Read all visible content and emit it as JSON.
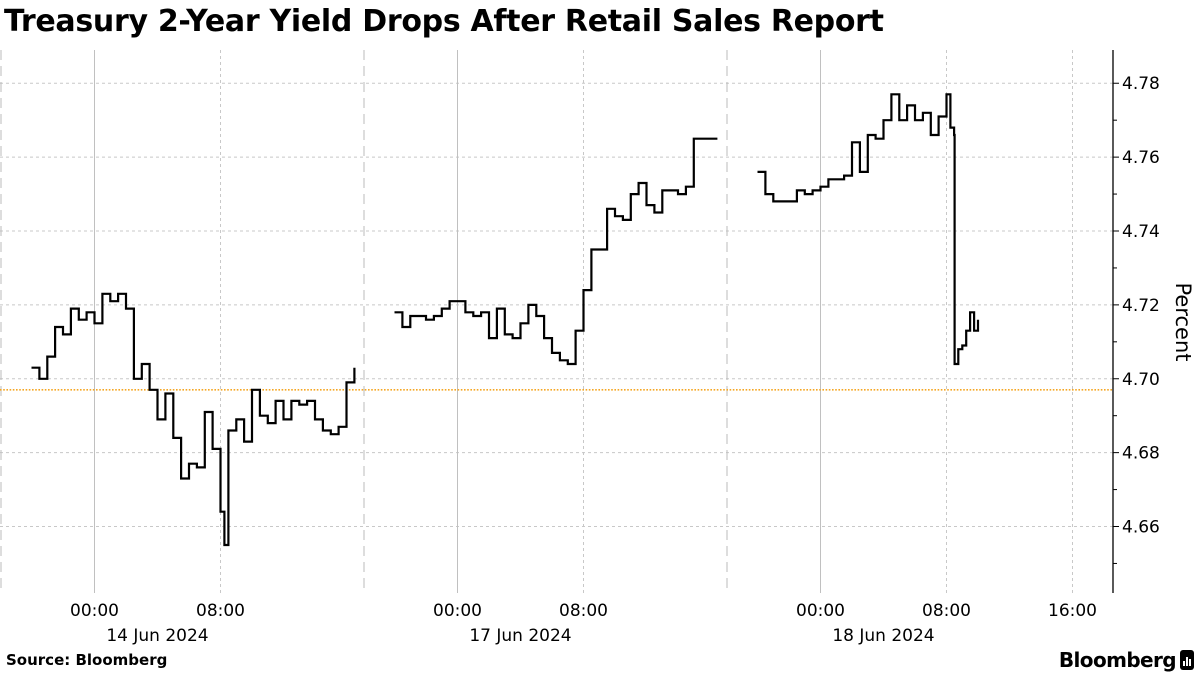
{
  "title": "Treasury 2-Year Yield Drops After Retail Sales Report",
  "source": "Source: Bloomberg",
  "brand": "Bloomberg",
  "chart_data": {
    "type": "line",
    "title": "Treasury 2-Year Yield Drops After Retail Sales Report",
    "ylabel": "Percent",
    "ylim": [
      4.642,
      4.789
    ],
    "yticks": [
      "4.66",
      "4.68",
      "4.70",
      "4.72",
      "4.74",
      "4.76",
      "4.78"
    ],
    "ytick_values": [
      4.66,
      4.68,
      4.7,
      4.72,
      4.74,
      4.76,
      4.78
    ],
    "grid": true,
    "line_color": "#000000",
    "reference_line": {
      "value": 4.697,
      "color": "#f5a623",
      "style": "dotted"
    },
    "sessions": [
      {
        "date": "2024-06-14",
        "date_label": "14 Jun 2024",
        "range": [
          "2024-06-13T18:00",
          "2024-06-14T17:00"
        ],
        "tick_labels": [
          "00:00",
          "08:00"
        ],
        "points": [
          [
            "2024-06-13T20:00",
            4.703
          ],
          [
            "2024-06-13T20:30",
            4.7
          ],
          [
            "2024-06-13T21:00",
            4.706
          ],
          [
            "2024-06-13T21:30",
            4.714
          ],
          [
            "2024-06-13T22:00",
            4.712
          ],
          [
            "2024-06-13T22:30",
            4.719
          ],
          [
            "2024-06-13T23:00",
            4.716
          ],
          [
            "2024-06-13T23:30",
            4.718
          ],
          [
            "2024-06-14T00:00",
            4.715
          ],
          [
            "2024-06-14T00:30",
            4.723
          ],
          [
            "2024-06-14T01:00",
            4.721
          ],
          [
            "2024-06-14T01:30",
            4.723
          ],
          [
            "2024-06-14T02:00",
            4.719
          ],
          [
            "2024-06-14T02:30",
            4.7
          ],
          [
            "2024-06-14T03:00",
            4.704
          ],
          [
            "2024-06-14T03:30",
            4.697
          ],
          [
            "2024-06-14T04:00",
            4.689
          ],
          [
            "2024-06-14T04:30",
            4.696
          ],
          [
            "2024-06-14T05:00",
            4.684
          ],
          [
            "2024-06-14T05:30",
            4.673
          ],
          [
            "2024-06-14T06:00",
            4.677
          ],
          [
            "2024-06-14T06:30",
            4.676
          ],
          [
            "2024-06-14T07:00",
            4.691
          ],
          [
            "2024-06-14T07:30",
            4.681
          ],
          [
            "2024-06-14T08:00",
            4.664
          ],
          [
            "2024-06-14T08:15",
            4.655
          ],
          [
            "2024-06-14T08:30",
            4.686
          ],
          [
            "2024-06-14T09:00",
            4.689
          ],
          [
            "2024-06-14T09:30",
            4.683
          ],
          [
            "2024-06-14T10:00",
            4.697
          ],
          [
            "2024-06-14T10:30",
            4.69
          ],
          [
            "2024-06-14T11:00",
            4.688
          ],
          [
            "2024-06-14T11:30",
            4.694
          ],
          [
            "2024-06-14T12:00",
            4.689
          ],
          [
            "2024-06-14T12:30",
            4.694
          ],
          [
            "2024-06-14T13:00",
            4.693
          ],
          [
            "2024-06-14T13:30",
            4.694
          ],
          [
            "2024-06-14T14:00",
            4.689
          ],
          [
            "2024-06-14T14:30",
            4.686
          ],
          [
            "2024-06-14T15:00",
            4.685
          ],
          [
            "2024-06-14T15:30",
            4.687
          ],
          [
            "2024-06-14T16:00",
            4.699
          ],
          [
            "2024-06-14T16:30",
            4.703
          ]
        ]
      },
      {
        "date": "2024-06-17",
        "date_label": "17 Jun 2024",
        "range": [
          "2024-06-16T18:00",
          "2024-06-17T17:00"
        ],
        "tick_labels": [
          "00:00",
          "08:00"
        ],
        "points": [
          [
            "2024-06-16T20:00",
            4.718
          ],
          [
            "2024-06-16T20:30",
            4.714
          ],
          [
            "2024-06-16T21:00",
            4.717
          ],
          [
            "2024-06-16T21:30",
            4.717
          ],
          [
            "2024-06-16T22:00",
            4.716
          ],
          [
            "2024-06-16T22:30",
            4.717
          ],
          [
            "2024-06-16T23:00",
            4.719
          ],
          [
            "2024-06-16T23:30",
            4.721
          ],
          [
            "2024-06-17T00:00",
            4.721
          ],
          [
            "2024-06-17T00:30",
            4.718
          ],
          [
            "2024-06-17T01:00",
            4.717
          ],
          [
            "2024-06-17T01:30",
            4.718
          ],
          [
            "2024-06-17T02:00",
            4.711
          ],
          [
            "2024-06-17T02:30",
            4.719
          ],
          [
            "2024-06-17T03:00",
            4.712
          ],
          [
            "2024-06-17T03:30",
            4.711
          ],
          [
            "2024-06-17T04:00",
            4.715
          ],
          [
            "2024-06-17T04:30",
            4.72
          ],
          [
            "2024-06-17T05:00",
            4.717
          ],
          [
            "2024-06-17T05:30",
            4.711
          ],
          [
            "2024-06-17T06:00",
            4.707
          ],
          [
            "2024-06-17T06:30",
            4.705
          ],
          [
            "2024-06-17T07:00",
            4.704
          ],
          [
            "2024-06-17T07:30",
            4.713
          ],
          [
            "2024-06-17T08:00",
            4.724
          ],
          [
            "2024-06-17T08:30",
            4.735
          ],
          [
            "2024-06-17T09:00",
            4.735
          ],
          [
            "2024-06-17T09:30",
            4.746
          ],
          [
            "2024-06-17T10:00",
            4.744
          ],
          [
            "2024-06-17T10:30",
            4.743
          ],
          [
            "2024-06-17T11:00",
            4.75
          ],
          [
            "2024-06-17T11:30",
            4.753
          ],
          [
            "2024-06-17T12:00",
            4.747
          ],
          [
            "2024-06-17T12:30",
            4.745
          ],
          [
            "2024-06-17T13:00",
            4.751
          ],
          [
            "2024-06-17T13:30",
            4.751
          ],
          [
            "2024-06-17T14:00",
            4.75
          ],
          [
            "2024-06-17T14:30",
            4.752
          ],
          [
            "2024-06-17T15:00",
            4.765
          ],
          [
            "2024-06-17T15:30",
            4.765
          ],
          [
            "2024-06-17T16:00",
            4.765
          ],
          [
            "2024-06-17T16:30",
            4.765
          ]
        ]
      },
      {
        "date": "2024-06-18",
        "date_label": "18 Jun 2024",
        "range": [
          "2024-06-17T18:00",
          "2024-06-18T18:36"
        ],
        "tick_labels": [
          "00:00",
          "08:00",
          "16:00"
        ],
        "points": [
          [
            "2024-06-17T20:00",
            4.756
          ],
          [
            "2024-06-17T20:30",
            4.75
          ],
          [
            "2024-06-17T21:00",
            4.748
          ],
          [
            "2024-06-17T21:30",
            4.748
          ],
          [
            "2024-06-17T22:00",
            4.748
          ],
          [
            "2024-06-17T22:30",
            4.751
          ],
          [
            "2024-06-17T23:00",
            4.75
          ],
          [
            "2024-06-17T23:30",
            4.751
          ],
          [
            "2024-06-18T00:00",
            4.752
          ],
          [
            "2024-06-18T00:30",
            4.754
          ],
          [
            "2024-06-18T01:00",
            4.754
          ],
          [
            "2024-06-18T01:30",
            4.755
          ],
          [
            "2024-06-18T02:00",
            4.764
          ],
          [
            "2024-06-18T02:30",
            4.756
          ],
          [
            "2024-06-18T03:00",
            4.766
          ],
          [
            "2024-06-18T03:30",
            4.765
          ],
          [
            "2024-06-18T04:00",
            4.77
          ],
          [
            "2024-06-18T04:30",
            4.777
          ],
          [
            "2024-06-18T05:00",
            4.77
          ],
          [
            "2024-06-18T05:30",
            4.774
          ],
          [
            "2024-06-18T06:00",
            4.77
          ],
          [
            "2024-06-18T06:30",
            4.772
          ],
          [
            "2024-06-18T07:00",
            4.766
          ],
          [
            "2024-06-18T07:30",
            4.771
          ],
          [
            "2024-06-18T08:00",
            4.777
          ],
          [
            "2024-06-18T08:15",
            4.768
          ],
          [
            "2024-06-18T08:29",
            4.766
          ],
          [
            "2024-06-18T08:31",
            4.704
          ],
          [
            "2024-06-18T08:45",
            4.708
          ],
          [
            "2024-06-18T09:00",
            4.709
          ],
          [
            "2024-06-18T09:15",
            4.713
          ],
          [
            "2024-06-18T09:30",
            4.718
          ],
          [
            "2024-06-18T09:45",
            4.713
          ],
          [
            "2024-06-18T10:00",
            4.716
          ]
        ]
      }
    ]
  }
}
